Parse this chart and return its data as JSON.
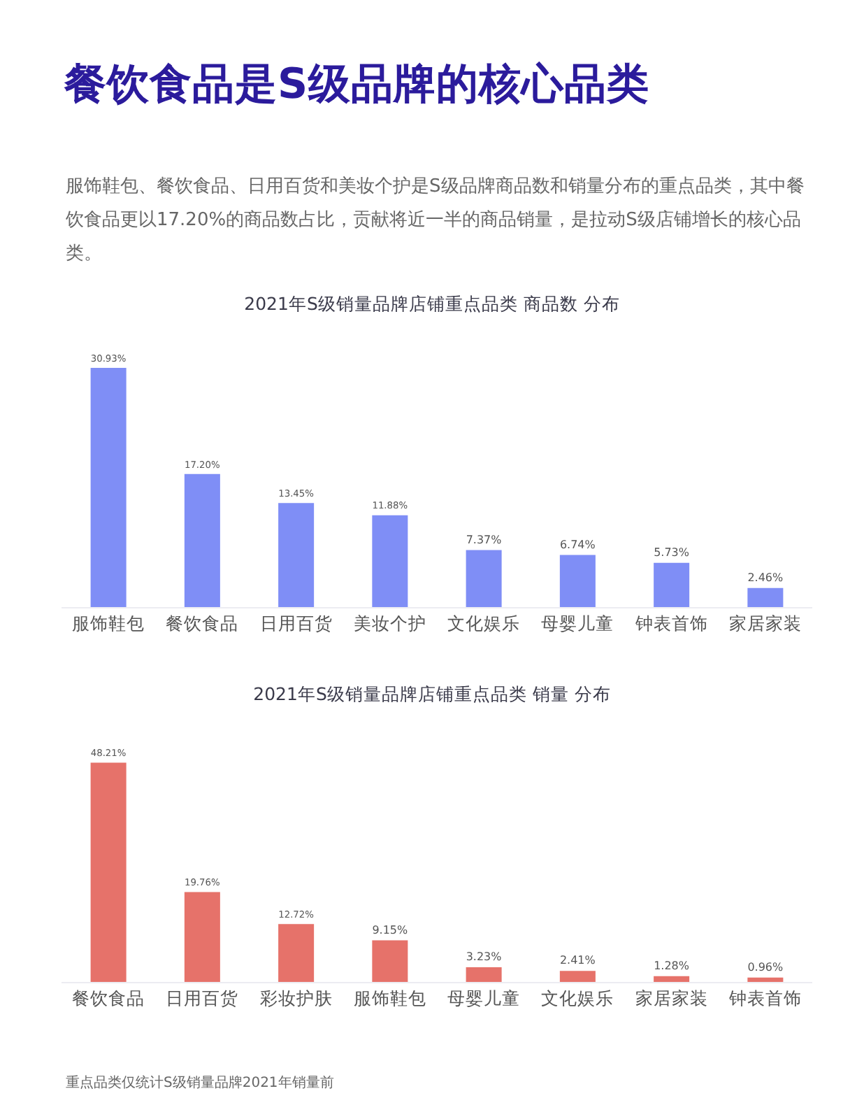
{
  "chart_data": [
    {
      "type": "other",
      "title": "餐饮食品是S级品牌的核心品类",
      "subtitle": "服饰鞋包、餐饮食品、日用百货和美妆个护是S级品牌商品数和销量分布的重点品类，其中餐饮食品更以17.20%的商品数占比，贡献将近一半的商品销量，是拉动S级店铺增长的核心品类。"
    },
    {
      "type": "bar",
      "title": "2021年S级销量品牌店铺重点品类 商品数 分布",
      "categories": [
        "服饰鞋包",
        "餐饮食品",
        "日用百货",
        "美妆个护",
        "文化娱乐",
        "母婴儿童",
        "钟表首饰",
        "家居家装"
      ],
      "values": [
        30.93,
        17.2,
        13.45,
        11.88,
        7.37,
        6.74,
        5.73,
        2.46
      ],
      "value_labels": [
        "30.93%",
        "17.20%",
        "13.45%",
        "11.88%",
        "7.37%",
        "6.74%",
        "5.73%",
        "2.46%"
      ],
      "color": "#7f8ef6",
      "tick_labels": "x"
    },
    {
      "type": "bar",
      "title": "2021年S级销量品牌店铺重点品类 销量 分布",
      "categories": [
        "餐饮食品",
        "日用百货",
        "彩妆护肤",
        "服饰鞋包",
        "母婴儿童",
        "文化娱乐",
        "家居家装",
        "钟表首饰"
      ],
      "values": [
        48.21,
        19.76,
        12.72,
        9.15,
        3.23,
        2.41,
        1.28,
        0.96
      ],
      "value_labels": [
        "48.21%",
        "19.76%",
        "12.72%",
        "9.15%",
        "3.23%",
        "2.41%",
        "1.28%",
        "0.96%"
      ],
      "color": "#e6726a",
      "tick_labels": "x",
      "annotations": [
        "重点品类仅统计S级销量品牌2021年销量前"
      ]
    }
  ]
}
